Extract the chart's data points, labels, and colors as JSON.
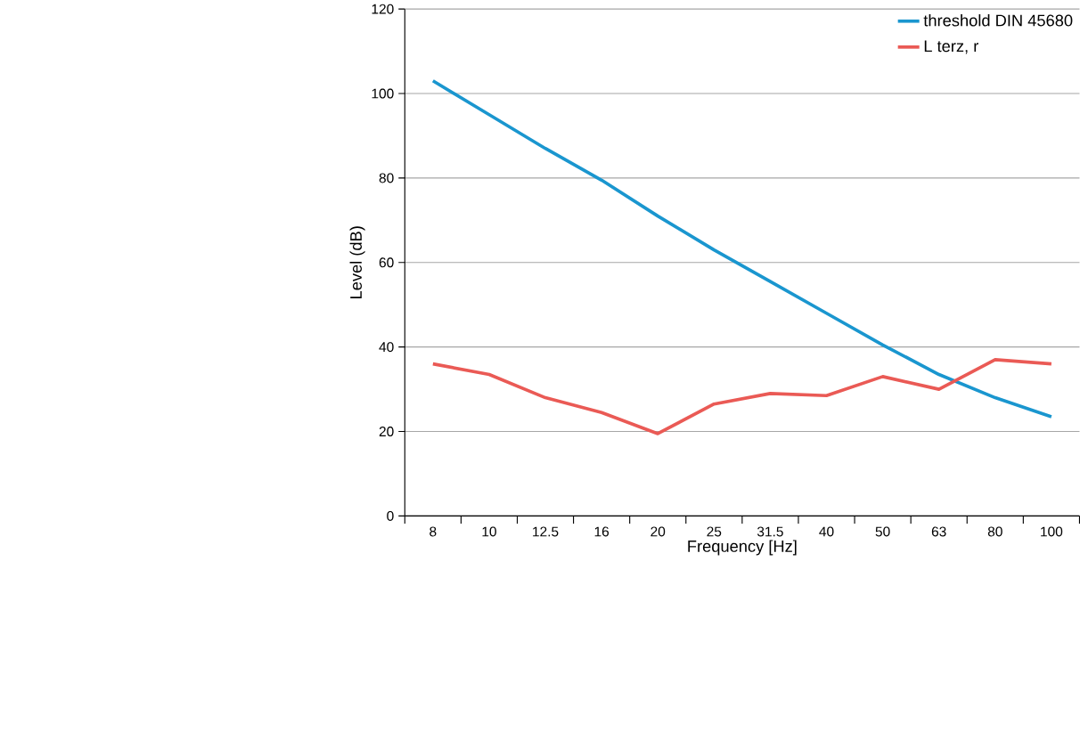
{
  "chart_data": {
    "type": "line",
    "xlabel": "Frequency [Hz]",
    "ylabel": "Level (dB)",
    "categories": [
      "8",
      "10",
      "12.5",
      "16",
      "20",
      "25",
      "31.5",
      "40",
      "50",
      "63",
      "80",
      "100"
    ],
    "series": [
      {
        "name": "threshold DIN 45680",
        "color": "#1a96cf",
        "values": [
          103,
          95,
          87,
          79.5,
          71,
          63,
          55.5,
          48,
          40.5,
          33.5,
          28,
          23.5
        ]
      },
      {
        "name": "L terz, r",
        "color": "#ea5a55",
        "values": [
          36,
          33.5,
          28,
          24.5,
          19.5,
          26.5,
          29,
          28.5,
          33,
          30,
          37,
          36
        ]
      }
    ],
    "ylim": [
      0,
      120
    ],
    "yticks": [
      0,
      20,
      40,
      60,
      80,
      100,
      120
    ],
    "grid": "y",
    "legend": "top right",
    "marker": "none",
    "line_style": "solid"
  }
}
